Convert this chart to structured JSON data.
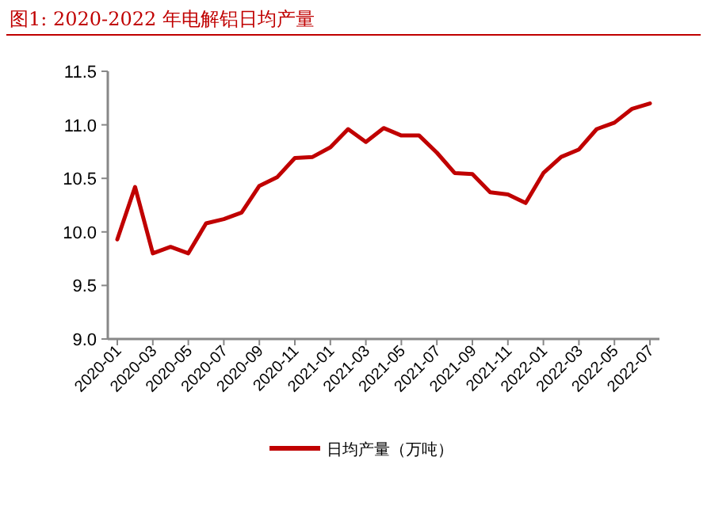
{
  "chart_data": {
    "type": "line",
    "title": "图1:   2020-2022 年电解铝日均产量",
    "categories": [
      "2020-01",
      null,
      "2020-03",
      null,
      "2020-05",
      null,
      "2020-07",
      null,
      "2020-09",
      null,
      "2020-11",
      null,
      "2021-01",
      null,
      "2021-03",
      null,
      "2021-05",
      null,
      "2021-07",
      null,
      "2021-09",
      null,
      "2021-11",
      null,
      "2022-01",
      null,
      "2022-03",
      null,
      "2022-05",
      null,
      "2022-07"
    ],
    "series": [
      {
        "name": "日均产量（万吨）",
        "color": "#c00000",
        "values": [
          9.93,
          10.42,
          9.8,
          9.86,
          9.8,
          10.08,
          10.12,
          10.18,
          10.43,
          10.51,
          10.69,
          10.7,
          10.79,
          10.96,
          10.84,
          10.97,
          10.9,
          10.9,
          10.74,
          10.55,
          10.54,
          10.37,
          10.35,
          10.27,
          10.55,
          10.7,
          10.77,
          10.96,
          11.02,
          11.15,
          11.2
        ]
      }
    ],
    "ylim": [
      9.0,
      11.5
    ],
    "yticks": [
      {
        "value": 9.0,
        "label": "9.0"
      },
      {
        "value": 9.5,
        "label": "9.5"
      },
      {
        "value": 10.0,
        "label": "10.0"
      },
      {
        "value": 10.5,
        "label": "10.5"
      },
      {
        "value": 11.0,
        "label": "11.0"
      },
      {
        "value": 11.5,
        "label": "11.5"
      }
    ],
    "grid": false,
    "legend": "bottom"
  }
}
